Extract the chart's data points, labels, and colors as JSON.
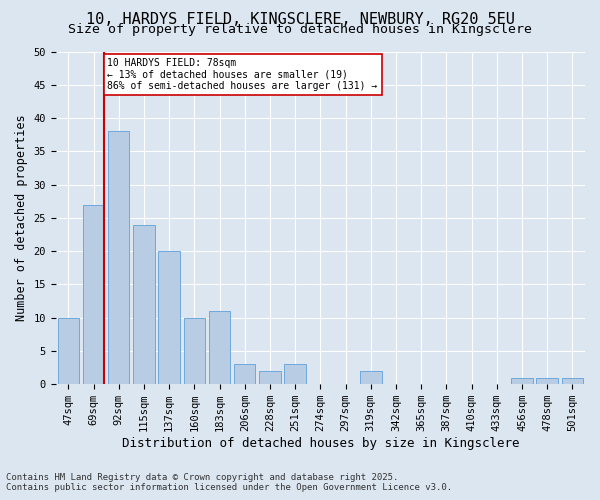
{
  "title_line1": "10, HARDYS FIELD, KINGSCLERE, NEWBURY, RG20 5EU",
  "title_line2": "Size of property relative to detached houses in Kingsclere",
  "xlabel": "Distribution of detached houses by size in Kingsclere",
  "ylabel": "Number of detached properties",
  "categories": [
    "47sqm",
    "69sqm",
    "92sqm",
    "115sqm",
    "137sqm",
    "160sqm",
    "183sqm",
    "206sqm",
    "228sqm",
    "251sqm",
    "274sqm",
    "297sqm",
    "319sqm",
    "342sqm",
    "365sqm",
    "387sqm",
    "410sqm",
    "433sqm",
    "456sqm",
    "478sqm",
    "501sqm"
  ],
  "values": [
    10,
    27,
    38,
    24,
    20,
    10,
    11,
    3,
    2,
    3,
    0,
    0,
    2,
    0,
    0,
    0,
    0,
    0,
    1,
    1,
    1
  ],
  "bar_color": "#b8cce4",
  "bar_edge_color": "#6fa8dc",
  "vline_color": "#cc0000",
  "annotation_box_edge": "#cc0000",
  "ylim": [
    0,
    50
  ],
  "yticks": [
    0,
    5,
    10,
    15,
    20,
    25,
    30,
    35,
    40,
    45,
    50
  ],
  "bg_color": "#dce6f1",
  "marker_label": "10 HARDYS FIELD: 78sqm",
  "annotation_line2": "← 13% of detached houses are smaller (19)",
  "annotation_line3": "86% of semi-detached houses are larger (131) →",
  "footer_line1": "Contains HM Land Registry data © Crown copyright and database right 2025.",
  "footer_line2": "Contains public sector information licensed under the Open Government Licence v3.0."
}
